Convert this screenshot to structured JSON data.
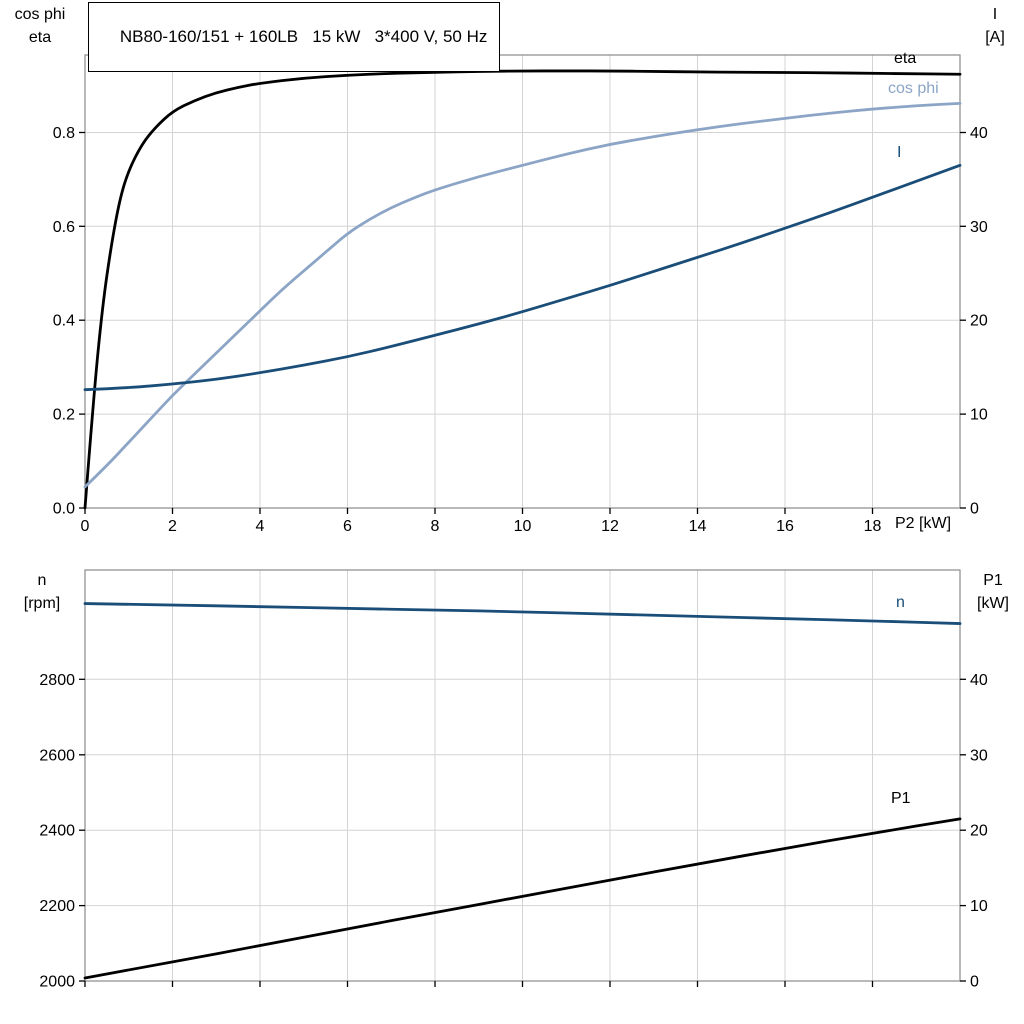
{
  "title": "NB80-160/151 + 160LB   15 kW   3*400 V, 50 Hz",
  "colors": {
    "grid": "#d4d4d4",
    "frame": "#8a8a8a",
    "tick": "#000000",
    "black_series": "#000000",
    "light_blue_series": "#8ca5c6",
    "dark_blue_series": "#1a4e79"
  },
  "chart_data": [
    {
      "type": "line",
      "title": "NB80-160/151 + 160LB   15 kW   3*400 V, 50 Hz",
      "xlabel": "P2 [kW]",
      "xlim": [
        0,
        20
      ],
      "x_ticks": {
        "values": [
          0,
          2,
          4,
          6,
          8,
          10,
          12,
          14,
          16,
          18
        ],
        "labels": [
          "0",
          "2",
          "4",
          "6",
          "8",
          "10",
          "12",
          "14",
          "16",
          "18"
        ]
      },
      "left_axis": {
        "label_lines": [
          "cos phi",
          "eta"
        ],
        "tick_values": [
          0.0,
          0.2,
          0.4,
          0.6,
          0.8
        ],
        "tick_labels": [
          "0.0",
          "0.2",
          "0.4",
          "0.6",
          "0.8"
        ],
        "lim": [
          0,
          0.965
        ]
      },
      "right_axis": {
        "label_lines": [
          "I",
          "[A]"
        ],
        "tick_values": [
          0,
          10,
          20,
          30,
          40
        ],
        "tick_labels": [
          "0",
          "10",
          "20",
          "30",
          "40"
        ],
        "lim": [
          0,
          48.25
        ]
      },
      "grid": true,
      "legend_position": "in-plot right",
      "series": [
        {
          "name": "eta",
          "axis": "left",
          "color": "#000000",
          "x": [
            0,
            0.2,
            0.4,
            0.6,
            0.8,
            1,
            1.3,
            1.6,
            2,
            2.5,
            3,
            3.5,
            4,
            5,
            6,
            7,
            8,
            9,
            10,
            11,
            12,
            13,
            14,
            15,
            16,
            17,
            18,
            19,
            20
          ],
          "y": [
            0,
            0.24,
            0.43,
            0.56,
            0.66,
            0.72,
            0.775,
            0.81,
            0.845,
            0.868,
            0.885,
            0.896,
            0.905,
            0.916,
            0.922,
            0.926,
            0.928,
            0.93,
            0.931,
            0.931,
            0.931,
            0.93,
            0.929,
            0.928,
            0.928,
            0.927,
            0.926,
            0.925,
            0.924
          ]
        },
        {
          "name": "cos phi",
          "axis": "left",
          "color": "#8ca5c6",
          "x": [
            0,
            0.5,
            1,
            1.5,
            2,
            2.5,
            3,
            3.5,
            4,
            4.5,
            5,
            5.5,
            6,
            6.5,
            7,
            7.5,
            8,
            9,
            10,
            11,
            12,
            13,
            14,
            15,
            16,
            17,
            18,
            19,
            20
          ],
          "y": [
            0.045,
            0.09,
            0.14,
            0.19,
            0.24,
            0.285,
            0.33,
            0.375,
            0.42,
            0.465,
            0.505,
            0.545,
            0.585,
            0.615,
            0.64,
            0.66,
            0.678,
            0.706,
            0.73,
            0.754,
            0.775,
            0.791,
            0.806,
            0.819,
            0.83,
            0.841,
            0.85,
            0.857,
            0.862
          ]
        },
        {
          "name": "I",
          "axis": "right",
          "color": "#1a4e79",
          "x": [
            0,
            1,
            2,
            3,
            4,
            5,
            6,
            7,
            8,
            9,
            10,
            11,
            12,
            13,
            14,
            15,
            16,
            17,
            18,
            19,
            20
          ],
          "y": [
            12.6,
            12.8,
            13.2,
            13.7,
            14.4,
            15.2,
            16.1,
            17.2,
            18.4,
            19.6,
            20.9,
            22.3,
            23.7,
            25.2,
            26.7,
            28.2,
            29.8,
            31.4,
            33.1,
            34.8,
            36.5
          ]
        }
      ]
    },
    {
      "type": "line",
      "title": "",
      "xlabel": "",
      "xlim": [
        0,
        20
      ],
      "x_ticks": {
        "values": [
          0,
          2,
          4,
          6,
          8,
          10,
          12,
          14,
          16,
          18
        ],
        "labels": []
      },
      "left_axis": {
        "label_lines": [
          "n",
          "[rpm]"
        ],
        "tick_values": [
          2000,
          2200,
          2400,
          2600,
          2800
        ],
        "tick_labels": [
          "2000",
          "2200",
          "2400",
          "2600",
          "2800"
        ],
        "lim": [
          2000,
          3090
        ]
      },
      "right_axis": {
        "label_lines": [
          "P1",
          "[kW]"
        ],
        "tick_values": [
          0,
          10,
          20,
          30,
          40
        ],
        "tick_labels": [
          "0",
          "10",
          "20",
          "30",
          "40"
        ],
        "lim": [
          0,
          54.5
        ]
      },
      "grid": true,
      "legend_position": "in-plot right",
      "series": [
        {
          "name": "n",
          "axis": "left",
          "color": "#1a4e79",
          "x": [
            0,
            2,
            4,
            6,
            8,
            10,
            12,
            14,
            16,
            18,
            20
          ],
          "y": [
            3001,
            2997,
            2993,
            2988,
            2984,
            2979,
            2973,
            2967,
            2961,
            2955,
            2948
          ]
        },
        {
          "name": "P1",
          "axis": "right",
          "color": "#000000",
          "x": [
            0,
            2,
            4,
            6,
            8,
            10,
            12,
            14,
            16,
            18,
            20
          ],
          "y": [
            0.4,
            2.5,
            4.7,
            6.9,
            9.1,
            11.2,
            13.4,
            15.5,
            17.6,
            19.6,
            21.5
          ]
        }
      ]
    }
  ]
}
